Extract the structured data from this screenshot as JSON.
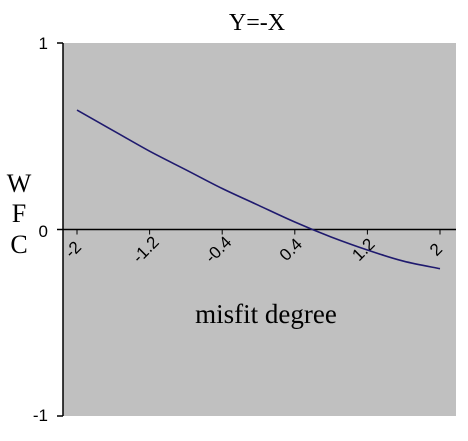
{
  "chart_data": {
    "type": "line",
    "title": "Y=-X",
    "xlabel": "misfit degree",
    "ylabel_lines": [
      "W",
      "F",
      "C"
    ],
    "xlim": [
      -2.0,
      2.0
    ],
    "ylim": [
      -1,
      1
    ],
    "y_ticks": [
      "1",
      "0",
      "-1"
    ],
    "x_tick_labels": [
      "-2",
      "-1.2",
      "-0.4",
      "0.4",
      "1.2",
      "2"
    ],
    "grid": false,
    "legend": "none",
    "colors": {
      "plot_area": "#c0c0c0",
      "line": "#1f1a6e",
      "axis": "#000000"
    },
    "series": [
      {
        "x": [
          -2.0,
          -1.6,
          -1.2,
          -0.8,
          -0.4,
          0.0,
          0.4,
          0.8,
          1.2,
          1.6,
          2.0
        ],
        "y": [
          0.64,
          0.53,
          0.42,
          0.32,
          0.22,
          0.13,
          0.04,
          -0.04,
          -0.11,
          -0.17,
          -0.21
        ]
      }
    ]
  }
}
